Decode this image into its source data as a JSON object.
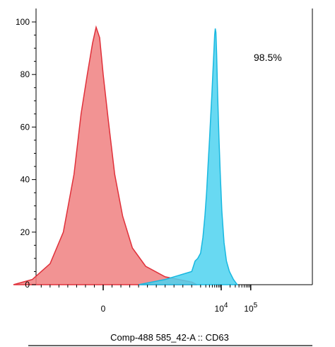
{
  "chart_data": {
    "type": "area",
    "xlabel": "Comp-488 585_42-A :: CD63",
    "ylabel": "",
    "ylim": [
      0,
      100
    ],
    "y_ticks": [
      0,
      20,
      40,
      60,
      80,
      100
    ],
    "x_scale": "biexponential",
    "x_tick_labels": [
      {
        "value": 0,
        "base": "0",
        "exp": ""
      },
      {
        "value": 10000,
        "base": "10",
        "exp": "4"
      },
      {
        "value": 100000,
        "base": "10",
        "exp": "5"
      }
    ],
    "annotation": "98.5%",
    "grid": false,
    "series": [
      {
        "color": "#f08080",
        "stroke": "#e0303a",
        "points": [
          [
            -1100,
            0
          ],
          [
            -800,
            2
          ],
          [
            -600,
            8
          ],
          [
            -450,
            20
          ],
          [
            -330,
            42
          ],
          [
            -250,
            65
          ],
          [
            -180,
            80
          ],
          [
            -120,
            92
          ],
          [
            -80,
            98
          ],
          [
            -40,
            94
          ],
          [
            0,
            80
          ],
          [
            60,
            62
          ],
          [
            130,
            42
          ],
          [
            220,
            26
          ],
          [
            330,
            14
          ],
          [
            480,
            7
          ],
          [
            700,
            3
          ],
          [
            1000,
            1
          ],
          [
            1500,
            0
          ]
        ]
      },
      {
        "color": "#4dd2f0",
        "stroke": "#18b8e0",
        "points": [
          [
            400,
            0
          ],
          [
            700,
            2
          ],
          [
            1000,
            5
          ],
          [
            1300,
            9
          ],
          [
            1600,
            10
          ],
          [
            2000,
            12
          ],
          [
            2400,
            18
          ],
          [
            2800,
            26
          ],
          [
            3200,
            35
          ],
          [
            3600,
            46
          ],
          [
            4000,
            55
          ],
          [
            4400,
            64
          ],
          [
            4800,
            72
          ],
          [
            5200,
            80
          ],
          [
            5600,
            88
          ],
          [
            6000,
            95
          ],
          [
            6300,
            97.5
          ],
          [
            6600,
            96
          ],
          [
            7000,
            88
          ],
          [
            7600,
            72
          ],
          [
            8400,
            56
          ],
          [
            9300,
            42
          ],
          [
            10500,
            28
          ],
          [
            12500,
            16
          ],
          [
            15000,
            9
          ],
          [
            19000,
            5
          ],
          [
            26000,
            2
          ],
          [
            35000,
            0
          ]
        ]
      }
    ]
  }
}
